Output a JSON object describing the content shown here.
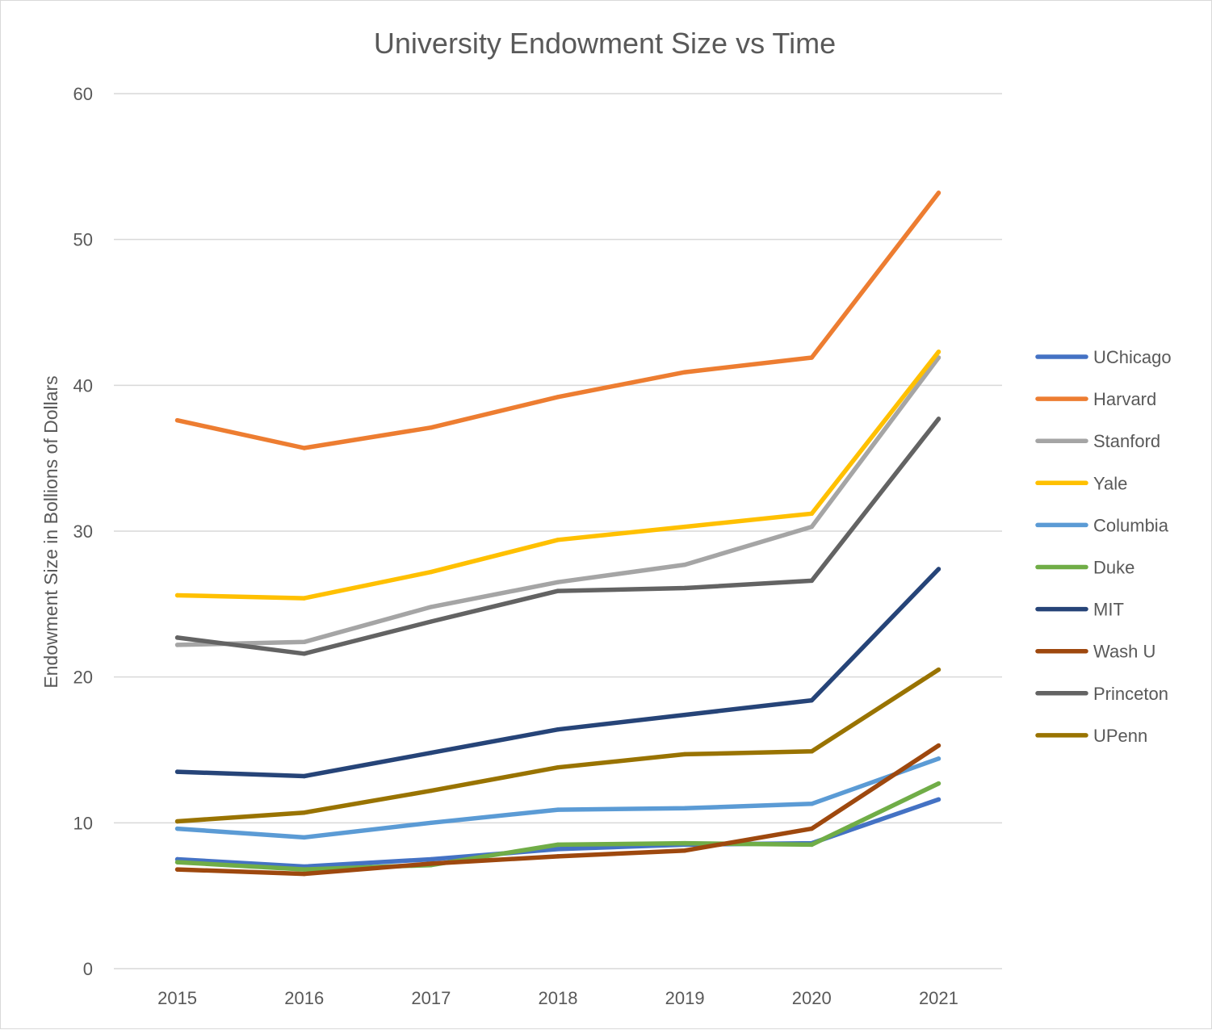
{
  "chart_data": {
    "type": "line",
    "title": "University Endowment Size vs Time",
    "xlabel": "",
    "ylabel": "Endowment Size in Bollions of Dollars",
    "ylim": [
      0,
      60
    ],
    "yticks": [
      0,
      10,
      20,
      30,
      40,
      50,
      60
    ],
    "categories": [
      "2015",
      "2016",
      "2017",
      "2018",
      "2019",
      "2020",
      "2021"
    ],
    "grid": "horizontal",
    "legend_position": "right",
    "series": [
      {
        "name": "UChicago",
        "color": "#4472C4",
        "values": [
          7.5,
          7.0,
          7.5,
          8.2,
          8.5,
          8.6,
          11.6
        ]
      },
      {
        "name": "Harvard",
        "color": "#ED7D31",
        "values": [
          37.6,
          35.7,
          37.1,
          39.2,
          40.9,
          41.9,
          53.2
        ]
      },
      {
        "name": "Stanford",
        "color": "#A5A5A5",
        "values": [
          22.2,
          22.4,
          24.8,
          26.5,
          27.7,
          30.3,
          41.9
        ]
      },
      {
        "name": "Yale",
        "color": "#FFC000",
        "values": [
          25.6,
          25.4,
          27.2,
          29.4,
          30.3,
          31.2,
          42.3
        ]
      },
      {
        "name": "Columbia",
        "color": "#5B9BD5",
        "values": [
          9.6,
          9.0,
          10.0,
          10.9,
          11.0,
          11.3,
          14.4
        ]
      },
      {
        "name": "Duke",
        "color": "#70AD47",
        "values": [
          7.3,
          6.8,
          7.1,
          8.5,
          8.6,
          8.5,
          12.7
        ]
      },
      {
        "name": "MIT",
        "color": "#264478",
        "values": [
          13.5,
          13.2,
          14.8,
          16.4,
          17.4,
          18.4,
          27.4
        ]
      },
      {
        "name": "Wash U",
        "color": "#9E480E",
        "values": [
          6.8,
          6.5,
          7.2,
          7.7,
          8.1,
          9.6,
          15.3
        ]
      },
      {
        "name": "Princeton",
        "color": "#636363",
        "values": [
          22.7,
          21.6,
          23.8,
          25.9,
          26.1,
          26.6,
          37.7
        ]
      },
      {
        "name": "UPenn",
        "color": "#997300",
        "values": [
          10.1,
          10.7,
          12.2,
          13.8,
          14.7,
          14.9,
          20.5
        ]
      }
    ]
  }
}
